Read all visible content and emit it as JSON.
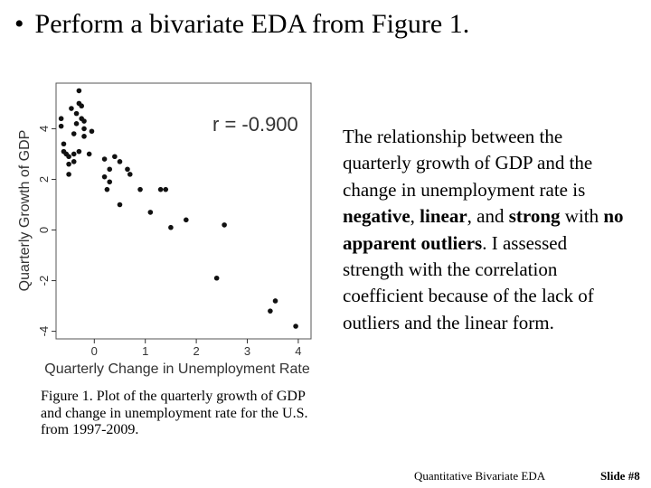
{
  "slide": {
    "bullet": "•",
    "title": "Perform a bivariate EDA from Figure 1.",
    "description": [
      {
        "text": "The relationship between the quarterly growth of GDP and the change in unemployment rate is ",
        "bold": false
      },
      {
        "text": "negative",
        "bold": true
      },
      {
        "text": ", ",
        "bold": false
      },
      {
        "text": "linear",
        "bold": true
      },
      {
        "text": ", and ",
        "bold": false
      },
      {
        "text": "strong",
        "bold": true
      },
      {
        "text": " with ",
        "bold": false
      },
      {
        "text": "no apparent outliers",
        "bold": true
      },
      {
        "text": ".  I assessed strength with the correlation coefficient because of the lack of outliers and the linear form.",
        "bold": false
      }
    ],
    "caption": "Figure 1.  Plot of the quarterly growth of GDP and change in unemployment rate for the U.S. from 1997-2009.",
    "footer_title": "Quantitative Bivariate EDA",
    "footer_slide": "Slide #8"
  },
  "chart_data": {
    "type": "scatter",
    "title": "",
    "xlabel": "Quarterly Change in Unemployment Rate",
    "ylabel": "Quarterly Growth of GDP",
    "annotation": "r = -0.900",
    "xlim": [
      -0.75,
      4.25
    ],
    "ylim": [
      -4.3,
      5.8
    ],
    "xticks": [
      0,
      1,
      2,
      3,
      4
    ],
    "yticks": [
      -4,
      -2,
      0,
      2,
      4
    ],
    "grid": false,
    "point_color": "#111111",
    "x": [
      -0.65,
      -0.65,
      -0.6,
      -0.6,
      -0.55,
      -0.5,
      -0.5,
      -0.5,
      -0.45,
      -0.4,
      -0.4,
      -0.4,
      -0.35,
      -0.35,
      -0.3,
      -0.3,
      -0.3,
      -0.25,
      -0.25,
      -0.2,
      -0.2,
      -0.2,
      -0.1,
      -0.05,
      0.2,
      0.2,
      0.25,
      0.3,
      0.3,
      0.4,
      0.5,
      0.5,
      0.65,
      0.7,
      0.9,
      1.1,
      1.3,
      1.4,
      1.5,
      1.8,
      2.4,
      2.55,
      3.45,
      3.55,
      3.95
    ],
    "y": [
      4.4,
      4.1,
      3.4,
      3.1,
      3.0,
      2.9,
      2.6,
      2.2,
      4.8,
      3.8,
      3.0,
      2.7,
      4.6,
      4.2,
      5.5,
      5.0,
      3.1,
      4.9,
      4.4,
      4.3,
      4.0,
      3.7,
      3.0,
      3.9,
      2.8,
      2.1,
      1.6,
      2.4,
      1.9,
      2.9,
      2.7,
      1.0,
      2.4,
      2.2,
      1.6,
      0.7,
      1.6,
      1.6,
      0.1,
      0.4,
      -1.9,
      0.2,
      -3.2,
      -2.8,
      -3.8
    ]
  }
}
